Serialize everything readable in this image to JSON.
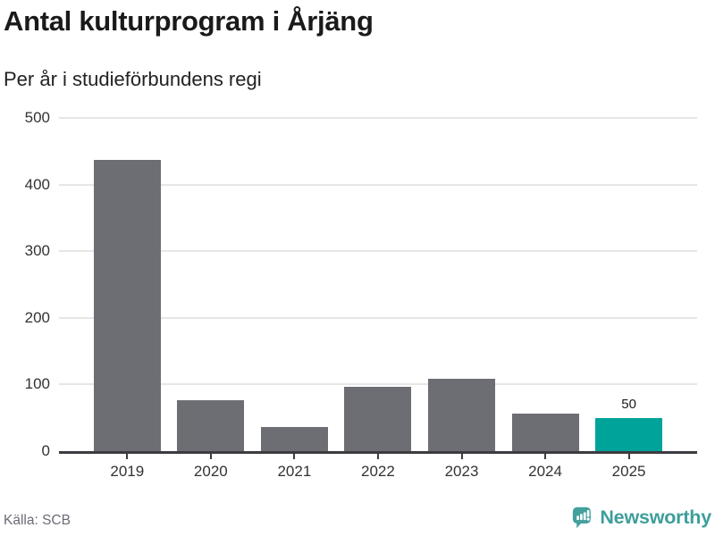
{
  "header": {
    "title": "Antal kulturprogram i Årjäng",
    "subtitle": "Per år i studieförbundens regi"
  },
  "chart_data": {
    "type": "bar",
    "title": "Antal kulturprogram i Årjäng",
    "subtitle": "Per år i studieförbundens regi",
    "categories": [
      "2019",
      "2020",
      "2021",
      "2022",
      "2023",
      "2024",
      "2025"
    ],
    "values": [
      437,
      77,
      36,
      96,
      109,
      56,
      50
    ],
    "highlight_index": 6,
    "data_labels": [
      null,
      null,
      null,
      null,
      null,
      null,
      "50"
    ],
    "xlabel": "",
    "ylabel": "",
    "ylim": [
      0,
      500
    ],
    "yticks": [
      0,
      100,
      200,
      300,
      400,
      500
    ],
    "grid": true,
    "legend": false
  },
  "colors": {
    "bar": "#6d6d74",
    "highlight": "#00a39a",
    "grid": "#e6e6e6",
    "axis": "#3b3b40",
    "tick_label": "#333333",
    "title": "#1a1a1a",
    "source_text": "#6b6b78",
    "brand_teal": "#3d9e9b",
    "logo_teal": "#44a09d"
  },
  "footer": {
    "source": "Källa: SCB",
    "brand": "Newsworthy"
  }
}
